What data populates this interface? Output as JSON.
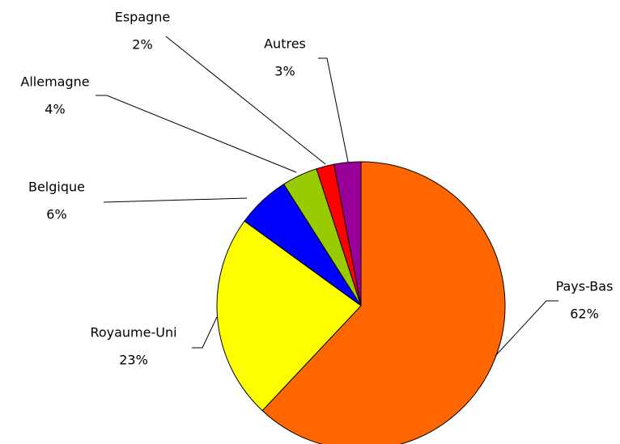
{
  "chart_data": {
    "type": "pie",
    "categories": [
      "Pays-Bas",
      "Royaume-Uni",
      "Belgique",
      "Allemagne",
      "Espagne",
      "Autres"
    ],
    "values": [
      62,
      23,
      6,
      4,
      2,
      3
    ],
    "value_labels": [
      "62%",
      "23%",
      "6%",
      "4%",
      "2%",
      "3%"
    ],
    "colors": [
      "#FF6600",
      "#FFFF00",
      "#0000FF",
      "#99CC00",
      "#FF0000",
      "#990099"
    ]
  }
}
